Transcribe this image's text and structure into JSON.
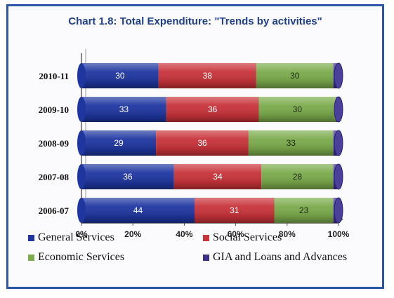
{
  "chart_data": {
    "type": "bar",
    "orientation": "horizontal",
    "stacked": "percent",
    "title": "Chart 1.8:   Total Expenditure: \"Trends by activities\"",
    "categories": [
      "2010-11",
      "2009-10",
      "2008-09",
      "2007-08",
      "2006-07"
    ],
    "series": [
      {
        "name": "General Services",
        "color": "#1f36a0",
        "values": [
          30,
          33,
          29,
          36,
          44
        ]
      },
      {
        "name": "Social Services",
        "color": "#c8333a",
        "values": [
          38,
          36,
          36,
          34,
          31
        ]
      },
      {
        "name": "Economic Services",
        "color": "#7bab4c",
        "values": [
          30,
          30,
          33,
          28,
          23
        ]
      },
      {
        "name": "GIA and Loans and Advances",
        "color": "#3b2f86",
        "values": [
          2,
          1,
          2,
          2,
          2
        ]
      }
    ],
    "x_ticks": [
      "0%",
      "20%",
      "40%",
      "60%",
      "80%",
      "100%"
    ],
    "xlim": [
      0,
      100
    ],
    "grid": false,
    "legend_position": "bottom",
    "effect": "3d-cylinder"
  }
}
